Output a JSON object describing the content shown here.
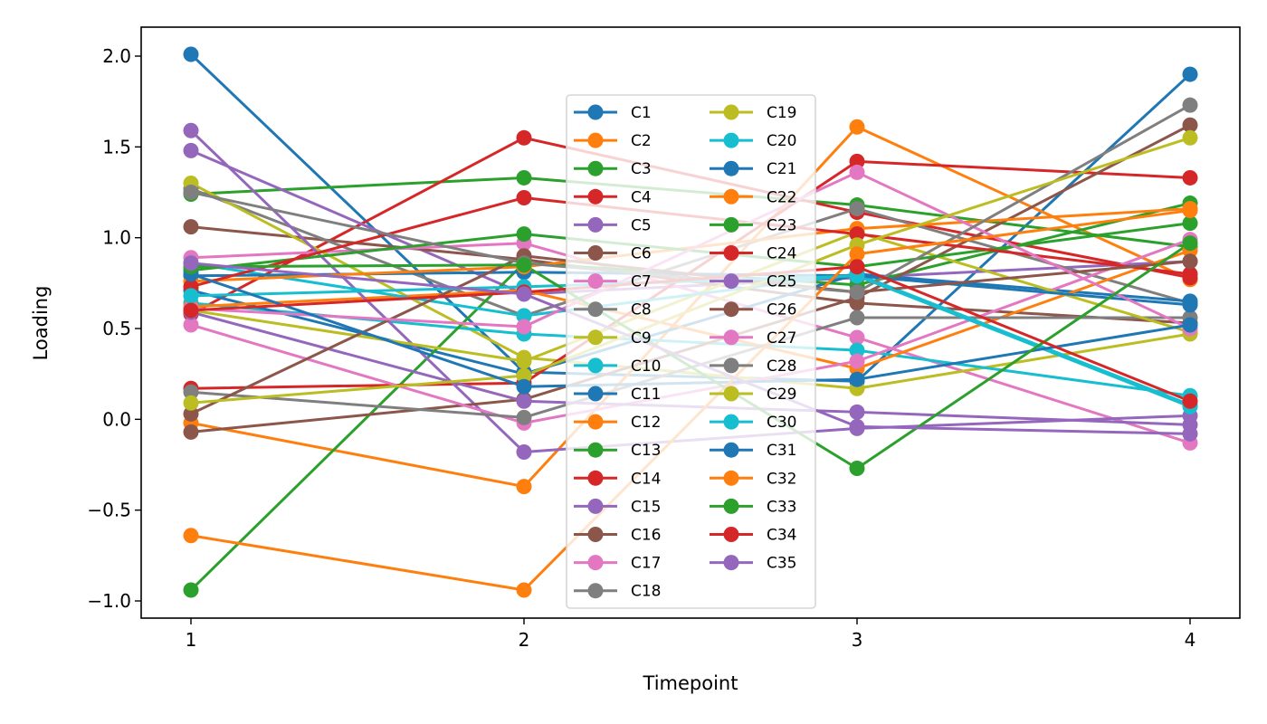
{
  "chart_data": {
    "type": "line",
    "title": "",
    "xlabel": "Timepoint",
    "ylabel": "Loading",
    "x": [
      1,
      2,
      3,
      4
    ],
    "xticks": [
      "1",
      "2",
      "3",
      "4"
    ],
    "yticks": [
      "−1.0",
      "−0.5",
      "0.0",
      "0.5",
      "1.0",
      "1.5",
      "2.0"
    ],
    "ytick_values": [
      -1.0,
      -0.5,
      0.0,
      0.5,
      1.0,
      1.5,
      2.0
    ],
    "xlim": [
      0.85,
      4.15
    ],
    "ylim": [
      -1.09,
      2.16
    ],
    "grid": false,
    "legend_placement": "center",
    "legend_columns": 2,
    "series": [
      {
        "name": "C1",
        "color": "#1f77b4",
        "values": [
          2.01,
          0.26,
          0.21,
          1.9
        ]
      },
      {
        "name": "C2",
        "color": "#ff7f0e",
        "values": [
          -0.02,
          -0.37,
          1.61,
          0.77
        ]
      },
      {
        "name": "C3",
        "color": "#2ca02c",
        "values": [
          1.24,
          1.33,
          1.18,
          0.95
        ]
      },
      {
        "name": "C4",
        "color": "#d62728",
        "values": [
          0.58,
          1.55,
          1.14,
          0.78
        ]
      },
      {
        "name": "C5",
        "color": "#9467bd",
        "values": [
          1.48,
          0.69,
          0.78,
          0.87
        ]
      },
      {
        "name": "C6",
        "color": "#8c564b",
        "values": [
          1.06,
          0.88,
          0.64,
          0.53
        ]
      },
      {
        "name": "C7",
        "color": "#e377c2",
        "values": [
          0.89,
          0.97,
          0.45,
          -0.13
        ]
      },
      {
        "name": "C8",
        "color": "#7f7f7f",
        "values": [
          1.27,
          0.57,
          1.16,
          0.64
        ]
      },
      {
        "name": "C9",
        "color": "#bcbd22",
        "values": [
          1.3,
          0.34,
          0.17,
          0.47
        ]
      },
      {
        "name": "C10",
        "color": "#17becf",
        "values": [
          0.64,
          0.47,
          0.38,
          0.13
        ]
      },
      {
        "name": "C11",
        "color": "#1f77b4",
        "values": [
          0.71,
          0.25,
          0.8,
          0.65
        ]
      },
      {
        "name": "C12",
        "color": "#ff7f0e",
        "values": [
          0.62,
          0.71,
          0.28,
          0.93
        ]
      },
      {
        "name": "C13",
        "color": "#2ca02c",
        "values": [
          -0.94,
          0.86,
          0.74,
          1.19
        ]
      },
      {
        "name": "C14",
        "color": "#d62728",
        "values": [
          0.17,
          0.2,
          1.42,
          1.33
        ]
      },
      {
        "name": "C15",
        "color": "#9467bd",
        "values": [
          1.59,
          -0.18,
          -0.05,
          0.02
        ]
      },
      {
        "name": "C16",
        "color": "#8c564b",
        "values": [
          -0.07,
          0.11,
          0.67,
          1.62
        ]
      },
      {
        "name": "C17",
        "color": "#e377c2",
        "values": [
          0.52,
          -0.02,
          0.32,
          0.99
        ]
      },
      {
        "name": "C18",
        "color": "#7f7f7f",
        "values": [
          0.15,
          0.01,
          0.56,
          0.56
        ]
      },
      {
        "name": "C19",
        "color": "#bcbd22",
        "values": [
          0.6,
          0.32,
          1.03,
          0.48
        ]
      },
      {
        "name": "C20",
        "color": "#17becf",
        "values": [
          0.86,
          0.57,
          0.8,
          0.08
        ]
      },
      {
        "name": "C21",
        "color": "#1f77b4",
        "values": [
          0.79,
          0.81,
          0.79,
          0.63
        ]
      },
      {
        "name": "C22",
        "color": "#ff7f0e",
        "values": [
          0.76,
          0.84,
          1.05,
          1.16
        ]
      },
      {
        "name": "C23",
        "color": "#2ca02c",
        "values": [
          0.82,
          1.02,
          0.84,
          1.08
        ]
      },
      {
        "name": "C24",
        "color": "#d62728",
        "values": [
          0.73,
          1.22,
          1.02,
          0.8
        ]
      },
      {
        "name": "C25",
        "color": "#9467bd",
        "values": [
          0.59,
          0.1,
          0.04,
          -0.03
        ]
      },
      {
        "name": "C26",
        "color": "#8c564b",
        "values": [
          0.03,
          0.9,
          0.7,
          0.87
        ]
      },
      {
        "name": "C27",
        "color": "#e377c2",
        "values": [
          0.61,
          0.51,
          1.36,
          0.5
        ]
      },
      {
        "name": "C28",
        "color": "#7f7f7f",
        "values": [
          1.25,
          0.86,
          0.7,
          1.73
        ]
      },
      {
        "name": "C29",
        "color": "#bcbd22",
        "values": [
          0.09,
          0.24,
          0.96,
          1.55
        ]
      },
      {
        "name": "C30",
        "color": "#17becf",
        "values": [
          0.68,
          0.73,
          0.79,
          0.07
        ]
      },
      {
        "name": "C31",
        "color": "#1f77b4",
        "values": [
          0.8,
          0.18,
          0.22,
          0.52
        ]
      },
      {
        "name": "C32",
        "color": "#ff7f0e",
        "values": [
          -0.64,
          -0.94,
          0.91,
          1.15
        ]
      },
      {
        "name": "C33",
        "color": "#2ca02c",
        "values": [
          0.84,
          0.85,
          -0.27,
          0.97
        ]
      },
      {
        "name": "C34",
        "color": "#d62728",
        "values": [
          0.6,
          0.7,
          0.84,
          0.1
        ]
      },
      {
        "name": "C35",
        "color": "#9467bd",
        "values": [
          0.86,
          0.69,
          -0.04,
          -0.08
        ]
      }
    ]
  }
}
